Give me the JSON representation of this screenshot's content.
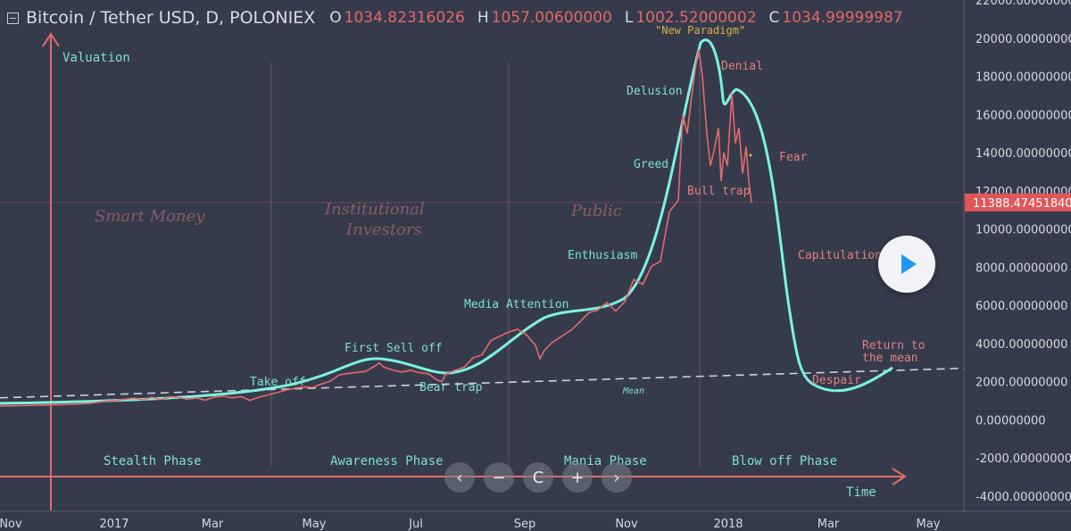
{
  "header": {
    "title": "Bitcoin / Tether USD, D, POLONIEX",
    "o_key": "O",
    "o": "1034.82316026",
    "h_key": "H",
    "h": "1057.00600000",
    "l_key": "L",
    "l": "1002.52000002",
    "c_key": "C",
    "c": "1034.99999987"
  },
  "nav": {
    "back": "‹",
    "minus": "−",
    "reset": "C",
    "plus": "+",
    "forward": "›"
  },
  "chart_data": {
    "type": "line",
    "ylim": [
      -4800,
      22000
    ],
    "y_ticks": [
      "22000.00000000",
      "20000.00000000",
      "18000.00000000",
      "16000.00000000",
      "14000.00000000",
      "12000.00000000",
      "10000.00000000",
      "8000.00000000",
      "6000.00000000",
      "4000.00000000",
      "2000.00000000",
      "0.00000000",
      "-2000.00000000",
      "-4000.00000000"
    ],
    "y_tick_values": [
      22000,
      20000,
      18000,
      16000,
      14000,
      12000,
      10000,
      8000,
      6000,
      4000,
      2000,
      0,
      -2000,
      -4000
    ],
    "x_ticks": [
      "Nov",
      "2017",
      "Mar",
      "May",
      "Jul",
      "Sep",
      "Nov",
      "2018",
      "Mar",
      "May"
    ],
    "price_line": {
      "value": 11388.4745184,
      "label": "11388.47451840"
    },
    "series": [
      {
        "values": [
          [
            0,
            720
          ],
          [
            20,
            740
          ],
          [
            40,
            760
          ],
          [
            60,
            780
          ],
          [
            80,
            810
          ],
          [
            100,
            860
          ],
          [
            110,
            920
          ],
          [
            120,
            980
          ],
          [
            130,
            1010
          ],
          [
            140,
            1080
          ],
          [
            150,
            1130
          ],
          [
            160,
            1050
          ],
          [
            170,
            1180
          ],
          [
            180,
            1060
          ],
          [
            190,
            1210
          ],
          [
            200,
            1170
          ],
          [
            210,
            1080
          ],
          [
            220,
            1150
          ],
          [
            230,
            1030
          ],
          [
            240,
            1190
          ],
          [
            250,
            1240
          ],
          [
            260,
            1150
          ],
          [
            270,
            1220
          ],
          [
            280,
            1020
          ],
          [
            290,
            1180
          ],
          [
            300,
            1300
          ],
          [
            310,
            1420
          ],
          [
            320,
            1550
          ],
          [
            330,
            1650
          ],
          [
            340,
            1720
          ],
          [
            350,
            1690
          ],
          [
            360,
            1880
          ],
          [
            370,
            2020
          ],
          [
            380,
            2350
          ],
          [
            390,
            2430
          ],
          [
            400,
            2480
          ],
          [
            410,
            2540
          ],
          [
            420,
            2820
          ],
          [
            425,
            2980
          ],
          [
            430,
            2760
          ],
          [
            440,
            2610
          ],
          [
            450,
            2500
          ],
          [
            460,
            2590
          ],
          [
            470,
            2470
          ],
          [
            480,
            2410
          ],
          [
            490,
            2080
          ],
          [
            495,
            1990
          ],
          [
            500,
            2420
          ],
          [
            510,
            2590
          ],
          [
            520,
            2760
          ],
          [
            530,
            3250
          ],
          [
            540,
            3400
          ],
          [
            550,
            4150
          ],
          [
            560,
            4380
          ],
          [
            570,
            4600
          ],
          [
            580,
            4740
          ],
          [
            590,
            4450
          ],
          [
            600,
            3900
          ],
          [
            605,
            3200
          ],
          [
            610,
            3650
          ],
          [
            620,
            4100
          ],
          [
            630,
            4400
          ],
          [
            640,
            4700
          ],
          [
            650,
            5150
          ],
          [
            660,
            5620
          ],
          [
            670,
            5750
          ],
          [
            680,
            6150
          ],
          [
            690,
            5700
          ],
          [
            700,
            6180
          ],
          [
            710,
            7350
          ],
          [
            720,
            7100
          ],
          [
            730,
            8050
          ],
          [
            740,
            8300
          ],
          [
            750,
            10900
          ],
          [
            760,
            11500
          ],
          [
            765,
            16000
          ],
          [
            770,
            15000
          ],
          [
            775,
            17000
          ],
          [
            780,
            18700
          ],
          [
            783,
            19400
          ],
          [
            787,
            18000
          ],
          [
            792,
            15000
          ],
          [
            796,
            13300
          ],
          [
            800,
            14100
          ],
          [
            805,
            15300
          ],
          [
            808,
            12500
          ],
          [
            811,
            14000
          ],
          [
            815,
            13300
          ],
          [
            820,
            17100
          ],
          [
            824,
            14500
          ],
          [
            828,
            15300
          ],
          [
            832,
            12900
          ],
          [
            836,
            14300
          ],
          [
            839,
            12500
          ],
          [
            842,
            11388
          ]
        ]
      }
    ],
    "annotations": {
      "ideal_curve_label": "",
      "axis_labels": {
        "valuation": "Valuation",
        "time": "Time"
      },
      "investor_groups": [
        "Smart Money",
        "Institutional",
        "Investors",
        "Public"
      ],
      "phases": [
        "Stealth Phase",
        "Awareness Phase",
        "Mania Phase",
        "Blow off Phase"
      ],
      "rising": [
        "Take off",
        "First Sell off",
        "Bear trap",
        "Media Attention",
        "Enthusiasm",
        "Greed",
        "Delusion"
      ],
      "peak": "\"New Paradigm\"",
      "falling": [
        "Denial",
        "Bull trap",
        "Fear",
        "Capitulation",
        "Despair",
        "Return to",
        "the mean"
      ],
      "mean_label": "Mean"
    },
    "colors": {
      "background": "#363b4b",
      "price": "#e26a6d",
      "curve": "#7df2df",
      "mean": "#cfd2da",
      "annotation_teal": "#7ddfd2",
      "annotation_red": "#e07f82",
      "paradigm": "#d8b04a",
      "axis_text": "#d6d8df",
      "price_tag": "#e0575b"
    }
  }
}
